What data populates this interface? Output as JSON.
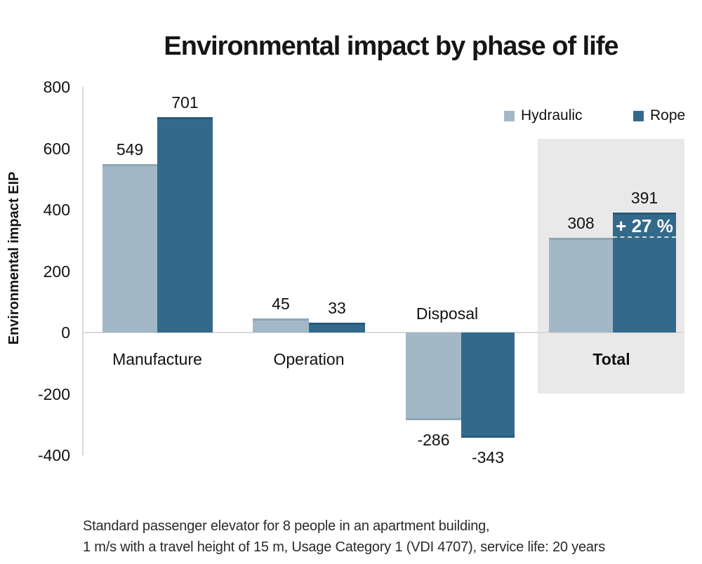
{
  "title": "Environmental impact by phase of life",
  "chart_data": {
    "type": "bar",
    "title": "Environmental impact by phase of life",
    "categories": [
      "Manufacture",
      "Operation",
      "Disposal",
      "Total"
    ],
    "series": [
      {
        "name": "Hydraulic",
        "color": "#a3b8c7",
        "edge_color": "#8da6b6",
        "values": [
          549,
          45,
          -286,
          308
        ]
      },
      {
        "name": "Rope",
        "color": "#336a8b",
        "edge_color": "#255a7c",
        "values": [
          701,
          33,
          -343,
          391
        ]
      }
    ],
    "xlabel": "",
    "ylabel": "Environmental impact EIP",
    "ylim": [
      -400,
      800
    ],
    "yticks": [
      800,
      600,
      400,
      200,
      0,
      -200,
      -400
    ],
    "grid": false,
    "legend_position": "top-right",
    "annotation": {
      "text": "+ 27 %",
      "text_color": "#ffffff",
      "target_category": "Total",
      "target_series": "Rope",
      "note": "difference between Rope total 391 and Hydraulic total 308, dashed reference line at 308 level"
    },
    "highlight_box": {
      "category": "Total",
      "color": "#e9e9e9"
    }
  },
  "colors": {
    "axis_line": "#d9d9d9",
    "background": "#ffffff",
    "text": "#111111"
  },
  "footer": {
    "line1": "Standard passenger elevator for 8 people in an apartment building,",
    "line2": "1 m/s with a travel height of 15 m, Usage Category 1 (VDI 4707), service life: 20 years"
  }
}
